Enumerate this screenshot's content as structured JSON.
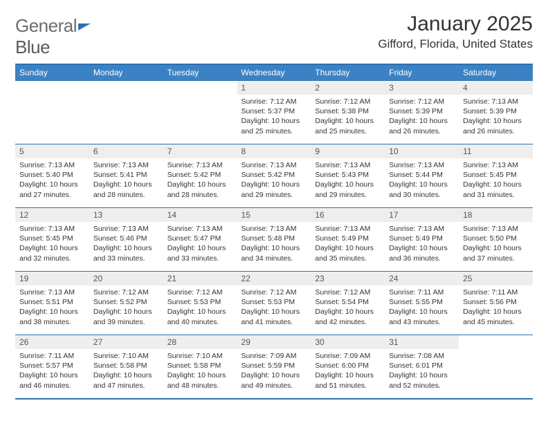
{
  "brand": {
    "text1": "General",
    "text2": "Blue"
  },
  "title": "January 2025",
  "location": "Gifford, Florida, United States",
  "colors": {
    "header_bg": "#3b82c4",
    "rule": "#2f6fb0",
    "daynum_bg": "#eeeeee",
    "text": "#333333",
    "logo_gray": "#6d6d6d"
  },
  "day_headers": [
    "Sunday",
    "Monday",
    "Tuesday",
    "Wednesday",
    "Thursday",
    "Friday",
    "Saturday"
  ],
  "weeks": [
    [
      null,
      null,
      null,
      {
        "n": "1",
        "sr": "7:12 AM",
        "ss": "5:37 PM",
        "dl": "10 hours and 25 minutes."
      },
      {
        "n": "2",
        "sr": "7:12 AM",
        "ss": "5:38 PM",
        "dl": "10 hours and 25 minutes."
      },
      {
        "n": "3",
        "sr": "7:12 AM",
        "ss": "5:39 PM",
        "dl": "10 hours and 26 minutes."
      },
      {
        "n": "4",
        "sr": "7:13 AM",
        "ss": "5:39 PM",
        "dl": "10 hours and 26 minutes."
      }
    ],
    [
      {
        "n": "5",
        "sr": "7:13 AM",
        "ss": "5:40 PM",
        "dl": "10 hours and 27 minutes."
      },
      {
        "n": "6",
        "sr": "7:13 AM",
        "ss": "5:41 PM",
        "dl": "10 hours and 28 minutes."
      },
      {
        "n": "7",
        "sr": "7:13 AM",
        "ss": "5:42 PM",
        "dl": "10 hours and 28 minutes."
      },
      {
        "n": "8",
        "sr": "7:13 AM",
        "ss": "5:42 PM",
        "dl": "10 hours and 29 minutes."
      },
      {
        "n": "9",
        "sr": "7:13 AM",
        "ss": "5:43 PM",
        "dl": "10 hours and 29 minutes."
      },
      {
        "n": "10",
        "sr": "7:13 AM",
        "ss": "5:44 PM",
        "dl": "10 hours and 30 minutes."
      },
      {
        "n": "11",
        "sr": "7:13 AM",
        "ss": "5:45 PM",
        "dl": "10 hours and 31 minutes."
      }
    ],
    [
      {
        "n": "12",
        "sr": "7:13 AM",
        "ss": "5:45 PM",
        "dl": "10 hours and 32 minutes."
      },
      {
        "n": "13",
        "sr": "7:13 AM",
        "ss": "5:46 PM",
        "dl": "10 hours and 33 minutes."
      },
      {
        "n": "14",
        "sr": "7:13 AM",
        "ss": "5:47 PM",
        "dl": "10 hours and 33 minutes."
      },
      {
        "n": "15",
        "sr": "7:13 AM",
        "ss": "5:48 PM",
        "dl": "10 hours and 34 minutes."
      },
      {
        "n": "16",
        "sr": "7:13 AM",
        "ss": "5:49 PM",
        "dl": "10 hours and 35 minutes."
      },
      {
        "n": "17",
        "sr": "7:13 AM",
        "ss": "5:49 PM",
        "dl": "10 hours and 36 minutes."
      },
      {
        "n": "18",
        "sr": "7:13 AM",
        "ss": "5:50 PM",
        "dl": "10 hours and 37 minutes."
      }
    ],
    [
      {
        "n": "19",
        "sr": "7:13 AM",
        "ss": "5:51 PM",
        "dl": "10 hours and 38 minutes."
      },
      {
        "n": "20",
        "sr": "7:12 AM",
        "ss": "5:52 PM",
        "dl": "10 hours and 39 minutes."
      },
      {
        "n": "21",
        "sr": "7:12 AM",
        "ss": "5:53 PM",
        "dl": "10 hours and 40 minutes."
      },
      {
        "n": "22",
        "sr": "7:12 AM",
        "ss": "5:53 PM",
        "dl": "10 hours and 41 minutes."
      },
      {
        "n": "23",
        "sr": "7:12 AM",
        "ss": "5:54 PM",
        "dl": "10 hours and 42 minutes."
      },
      {
        "n": "24",
        "sr": "7:11 AM",
        "ss": "5:55 PM",
        "dl": "10 hours and 43 minutes."
      },
      {
        "n": "25",
        "sr": "7:11 AM",
        "ss": "5:56 PM",
        "dl": "10 hours and 45 minutes."
      }
    ],
    [
      {
        "n": "26",
        "sr": "7:11 AM",
        "ss": "5:57 PM",
        "dl": "10 hours and 46 minutes."
      },
      {
        "n": "27",
        "sr": "7:10 AM",
        "ss": "5:58 PM",
        "dl": "10 hours and 47 minutes."
      },
      {
        "n": "28",
        "sr": "7:10 AM",
        "ss": "5:58 PM",
        "dl": "10 hours and 48 minutes."
      },
      {
        "n": "29",
        "sr": "7:09 AM",
        "ss": "5:59 PM",
        "dl": "10 hours and 49 minutes."
      },
      {
        "n": "30",
        "sr": "7:09 AM",
        "ss": "6:00 PM",
        "dl": "10 hours and 51 minutes."
      },
      {
        "n": "31",
        "sr": "7:08 AM",
        "ss": "6:01 PM",
        "dl": "10 hours and 52 minutes."
      },
      null
    ]
  ],
  "labels": {
    "sunrise": "Sunrise:",
    "sunset": "Sunset:",
    "daylight": "Daylight:"
  }
}
